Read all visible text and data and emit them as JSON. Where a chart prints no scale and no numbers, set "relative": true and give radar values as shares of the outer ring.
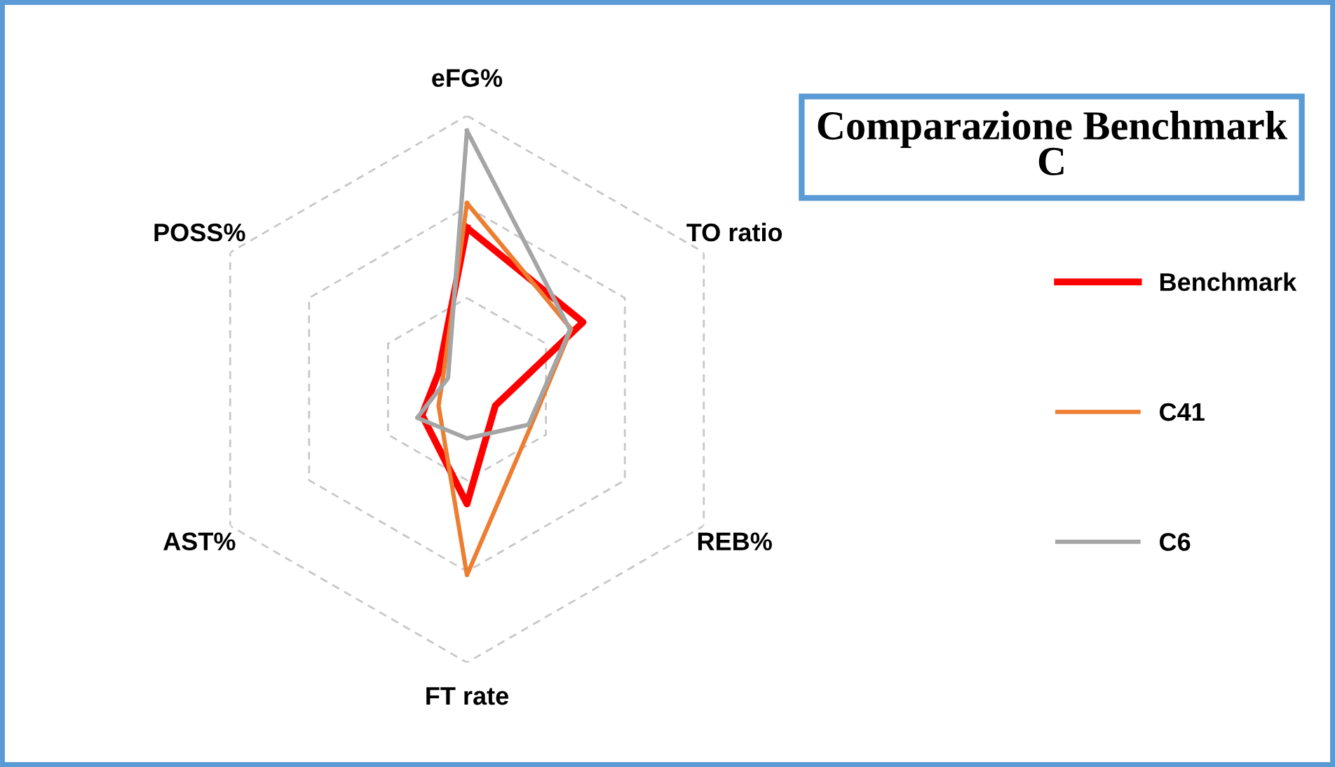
{
  "chart_data": {
    "type": "radar",
    "title": "Comparazione Benchmark C",
    "relative": true,
    "legend": "right",
    "grid": true,
    "categories": [
      "eFG%",
      "TO ratio",
      "REB%",
      "FT rate",
      "AST%",
      "POSS%"
    ],
    "series": [
      {
        "name": "Benchmark",
        "color": "#ff0000",
        "values": [
          0.59,
          0.49,
          0.12,
          0.42,
          0.19,
          0.12
        ]
      },
      {
        "name": "C41",
        "color": "#ed7d31",
        "values": [
          0.68,
          0.44,
          0.27,
          0.68,
          0.12,
          0.1
        ]
      },
      {
        "name": "C6",
        "color": "#a5a5a5",
        "values": [
          0.945,
          0.435,
          0.26,
          0.18,
          0.21,
          0.08
        ]
      }
    ]
  }
}
